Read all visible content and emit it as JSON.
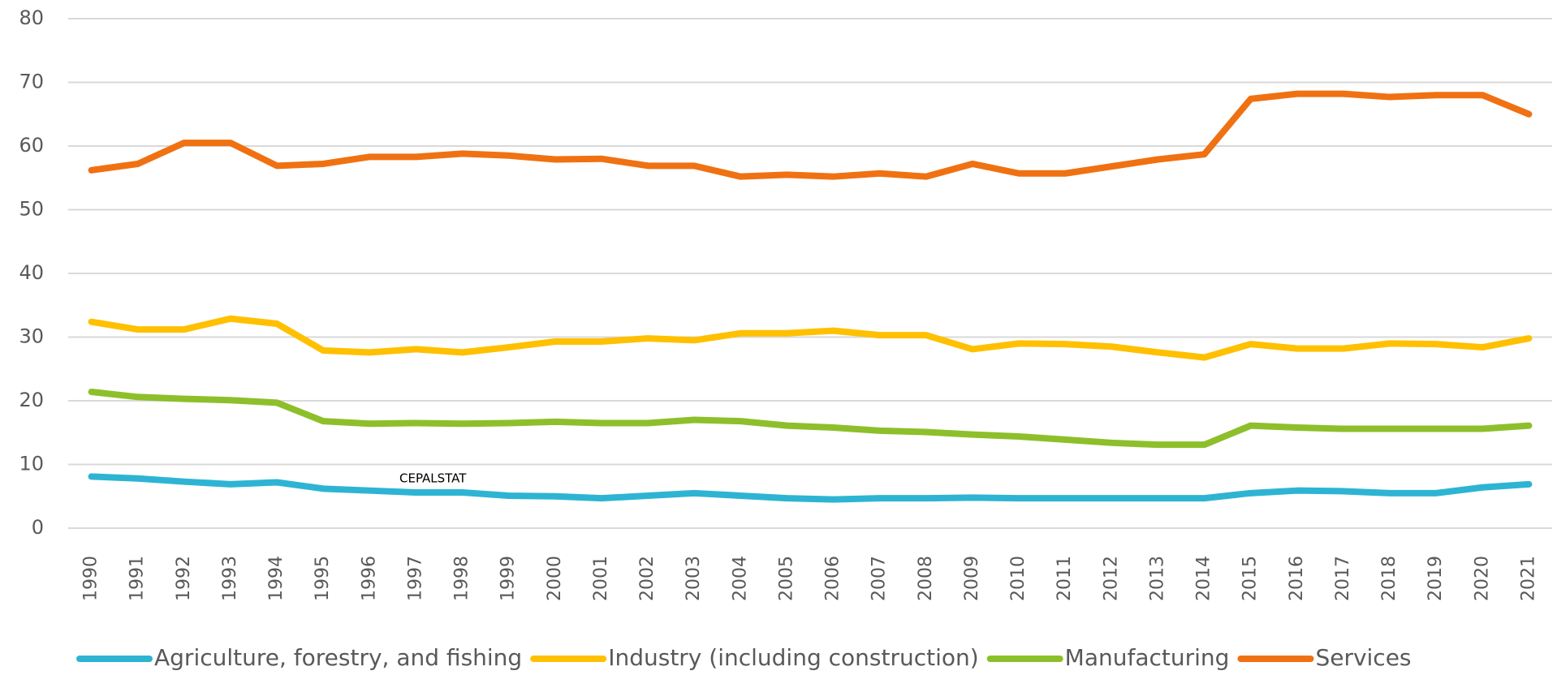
{
  "chart_data": {
    "type": "line",
    "annotation": "CEPALSTAT",
    "categories": [
      "1990",
      "1991",
      "1992",
      "1993",
      "1994",
      "1995",
      "1996",
      "1997",
      "1998",
      "1999",
      "2000",
      "2001",
      "2002",
      "2003",
      "2004",
      "2005",
      "2006",
      "2007",
      "2008",
      "2009",
      "2010",
      "2011",
      "2012",
      "2013",
      "2014",
      "2015",
      "2016",
      "2017",
      "2018",
      "2019",
      "2020",
      "2021"
    ],
    "series": [
      {
        "name": "Agriculture, forestry, and fishing",
        "color": "#2eb4d3",
        "values": [
          8.1,
          7.8,
          7.3,
          6.9,
          7.2,
          6.2,
          5.9,
          5.6,
          5.6,
          5.1,
          5.0,
          4.7,
          5.1,
          5.5,
          5.1,
          4.7,
          4.5,
          4.7,
          4.7,
          4.8,
          4.7,
          4.7,
          4.7,
          4.7,
          4.7,
          5.5,
          5.9,
          5.8,
          5.5,
          5.5,
          6.4,
          6.9
        ]
      },
      {
        "name": "Industry (including construction)",
        "color": "#ffc000",
        "values": [
          32.4,
          31.2,
          31.2,
          32.9,
          32.1,
          27.9,
          27.6,
          28.1,
          27.6,
          28.4,
          29.3,
          29.3,
          29.8,
          29.5,
          30.6,
          30.6,
          31.0,
          30.3,
          30.3,
          28.1,
          29.0,
          28.9,
          28.5,
          27.6,
          26.8,
          28.9,
          28.2,
          28.2,
          29.0,
          28.9,
          28.4,
          29.8
        ]
      },
      {
        "name": "Manufacturing",
        "color": "#8dbf2b",
        "values": [
          21.4,
          20.6,
          20.3,
          20.1,
          19.7,
          16.8,
          16.4,
          16.5,
          16.4,
          16.5,
          16.7,
          16.5,
          16.5,
          17.0,
          16.8,
          16.1,
          15.8,
          15.3,
          15.1,
          14.7,
          14.4,
          13.9,
          13.4,
          13.1,
          13.1,
          16.1,
          15.8,
          15.6,
          15.6,
          15.6,
          15.6,
          16.1
        ]
      },
      {
        "name": "Services",
        "color": "#f07112",
        "values": [
          56.2,
          57.2,
          60.5,
          60.5,
          56.9,
          57.2,
          58.3,
          58.3,
          58.8,
          58.5,
          57.9,
          58.0,
          56.9,
          56.9,
          55.2,
          55.5,
          55.2,
          55.7,
          55.2,
          57.2,
          55.7,
          55.7,
          56.8,
          57.9,
          58.7,
          67.4,
          68.2,
          68.2,
          67.7,
          68.0,
          68.0,
          65.0
        ]
      }
    ],
    "ylim": [
      0,
      80
    ],
    "yticks": [
      0,
      10,
      20,
      30,
      40,
      50,
      60,
      70,
      80
    ],
    "grid": true,
    "legend": "bottom"
  }
}
